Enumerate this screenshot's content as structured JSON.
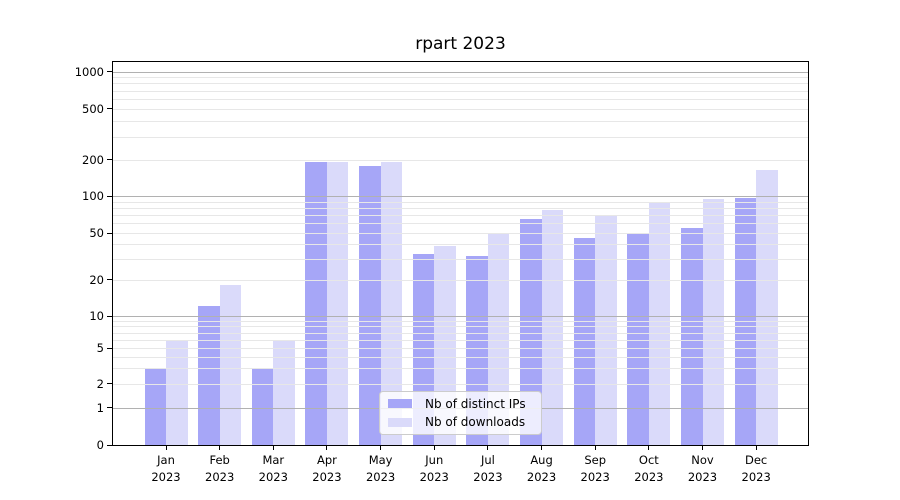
{
  "chart_data": {
    "type": "bar",
    "title": "rpart 2023",
    "categories": [
      "Jan 2023",
      "Feb 2023",
      "Mar 2023",
      "Apr 2023",
      "May 2023",
      "Jun 2023",
      "Jul 2023",
      "Aug 2023",
      "Sep 2023",
      "Oct 2023",
      "Nov 2023",
      "Dec 2023"
    ],
    "series": [
      {
        "name": "Nb of distinct IPs",
        "color": "#a6a6f7",
        "values": [
          3,
          12,
          3,
          190,
          178,
          33,
          32,
          65,
          45,
          50,
          55,
          97
        ]
      },
      {
        "name": "Nb of downloads",
        "color": "#dadafa",
        "values": [
          6,
          18,
          6,
          190,
          190,
          39,
          50,
          77,
          70,
          90,
          94,
          165
        ]
      }
    ],
    "y_ticks": [
      0,
      1,
      2,
      5,
      10,
      20,
      50,
      100,
      200,
      500,
      1000
    ],
    "ylim": [
      0,
      1000
    ],
    "y_scale": "log-like",
    "grid": "major and minor horizontal gridlines drawn over bars",
    "legend_position": "inside bottom-center",
    "colors": {
      "major_grid": "#b1b1b1",
      "minor_grid": "#e7e7e7",
      "axis": "#000000"
    }
  }
}
